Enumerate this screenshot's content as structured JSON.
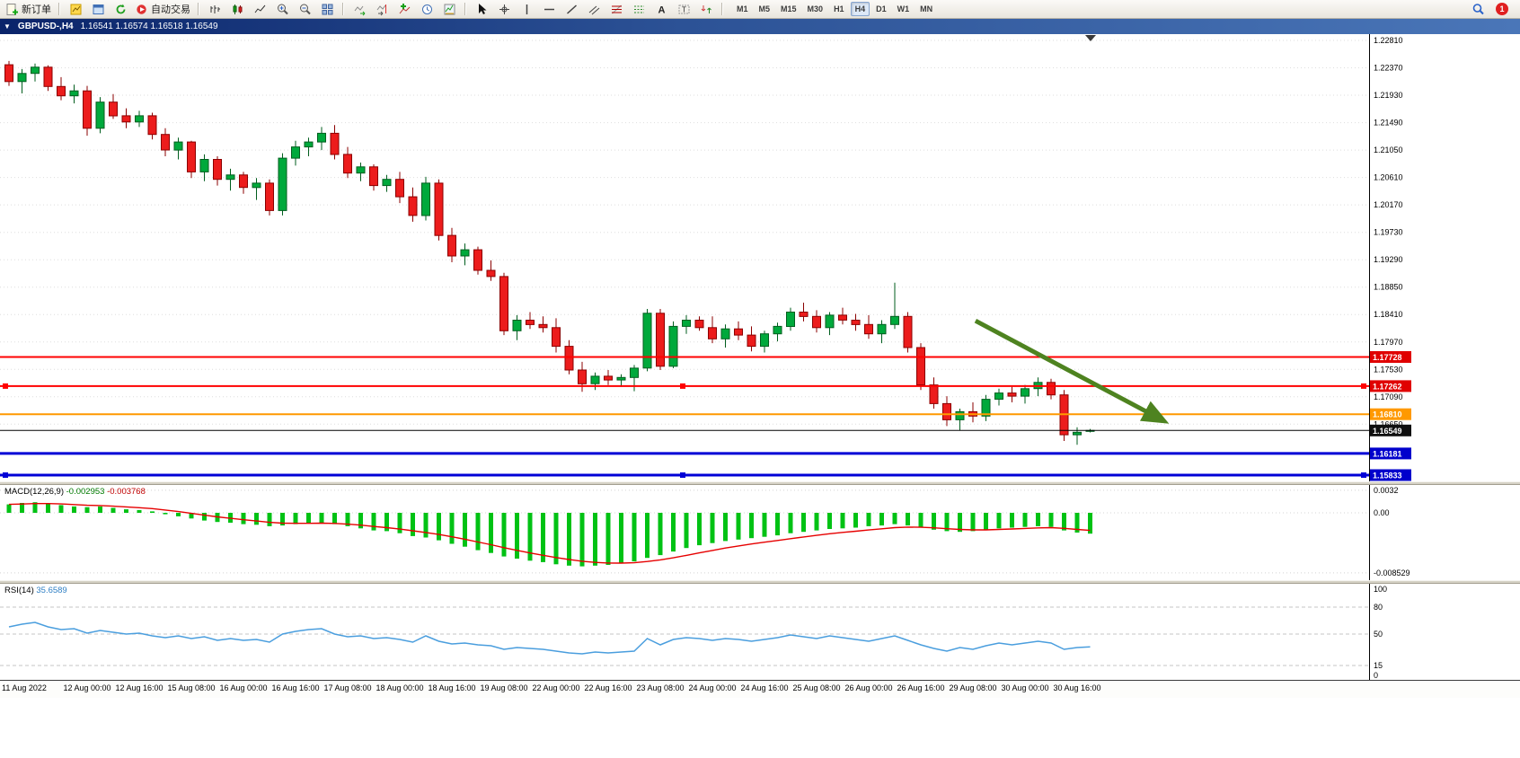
{
  "app": {
    "toolbar": {
      "new_order": "新订单",
      "auto_trading": "自动交易",
      "timeframes": [
        "M1",
        "M5",
        "M15",
        "M30",
        "H1",
        "H4",
        "D1",
        "W1",
        "MN"
      ],
      "active_timeframe": "H4",
      "notification_count": "1"
    },
    "icons": {
      "new-order-icon": "document-plus",
      "new-chart-icon": "yellow-chart-page",
      "profiles-icon": "blue-window",
      "refresh-icon": "green-circular-arrow",
      "auto-trading-icon": "red-play-circle",
      "bar-chart-icon": "ohlc-bars",
      "candlestick-chart-icon": "candles",
      "line-chart-icon": "zigzag-line",
      "zoom-in-icon": "magnifier-plus",
      "zoom-out-icon": "magnifier-minus",
      "tile-windows-icon": "window-grid",
      "auto-scroll-icon": "chart-green-arrow",
      "chart-shift-icon": "chart-red-marker",
      "indicators-icon": "chart-green-plus",
      "periods-icon": "clock",
      "templates-icon": "chart-template",
      "cursor-icon": "pointer-arrow",
      "crosshair-icon": "crosshair",
      "vertical-line-icon": "vertical-line",
      "horizontal-line-icon": "horizontal-line",
      "trendline-icon": "diagonal-line",
      "channel-icon": "parallel-lines",
      "fibonacci-icon": "fibo-retracement",
      "levels-icon": "stacked-lines",
      "text-icon": "letter-A",
      "text-label-icon": "boxed-T",
      "arrows-icon": "up-down-arrows",
      "search-icon": "magnifier",
      "chart-menu-icon": "triangle-down",
      "chart-shift-marker": "small-down-triangle"
    }
  },
  "titlebar": {
    "dropdown_glyph": "▼",
    "symbol": "GBPUSD-,H4",
    "ohlc": "1.16541 1.16574 1.16518 1.16549"
  },
  "colors": {
    "up": "#00A93C",
    "up_border": "#005E1E",
    "down": "#EC1C1C",
    "down_border": "#8B0000",
    "macd_hist": "#00C214",
    "macd_signal": "#E60000",
    "rsi_line": "#4A9EDE",
    "arrow": "#4E8320",
    "grid": "#DEDEDE",
    "hline_red": "#FF0000",
    "hline_orange": "#FF9900",
    "hline_blue": "#0000D6"
  },
  "chart_data": [
    {
      "type": "candlestick",
      "symbol": "GBPUSD-",
      "timeframe": "H4",
      "ylim": [
        1.156,
        1.2295
      ],
      "y_ticks": [
        1.2281,
        1.2237,
        1.2193,
        1.2149,
        1.2105,
        1.2061,
        1.2017,
        1.1973,
        1.1929,
        1.1885,
        1.1841,
        1.1797,
        1.1753,
        1.1709,
        1.1665
      ],
      "current_price": 1.16549,
      "x_labels": [
        [
          0,
          "11 Aug 2022"
        ],
        [
          6,
          "12 Aug 00:00"
        ],
        [
          10,
          "12 Aug 16:00"
        ],
        [
          14,
          "15 Aug 08:00"
        ],
        [
          18,
          "16 Aug 00:00"
        ],
        [
          22,
          "16 Aug 16:00"
        ],
        [
          26,
          "17 Aug 08:00"
        ],
        [
          30,
          "18 Aug 00:00"
        ],
        [
          34,
          "18 Aug 16:00"
        ],
        [
          38,
          "19 Aug 08:00"
        ],
        [
          42,
          "22 Aug 00:00"
        ],
        [
          46,
          "22 Aug 16:00"
        ],
        [
          50,
          "23 Aug 08:00"
        ],
        [
          54,
          "24 Aug 00:00"
        ],
        [
          58,
          "24 Aug 16:00"
        ],
        [
          62,
          "25 Aug 08:00"
        ],
        [
          66,
          "26 Aug 00:00"
        ],
        [
          70,
          "26 Aug 16:00"
        ],
        [
          74,
          "29 Aug 08:00"
        ],
        [
          78,
          "30 Aug 00:00"
        ],
        [
          82,
          "30 Aug 16:00"
        ]
      ],
      "hlines": [
        {
          "price": 1.17728,
          "label": "1.17728",
          "color": "#FF0000",
          "tag_bg": "#E00000",
          "width": 2,
          "selected": false
        },
        {
          "price": 1.17262,
          "label": "1.17262",
          "color": "#FF0000",
          "tag_bg": "#E00000",
          "width": 2,
          "selected": true
        },
        {
          "price": 1.1681,
          "label": "1.16810",
          "color": "#FF9900",
          "tag_bg": "#FF9900",
          "width": 2,
          "selected": false
        },
        {
          "price": 1.16181,
          "label": "1.16181",
          "color": "#0000D6",
          "tag_bg": "#0000CC",
          "width": 3,
          "selected": false
        },
        {
          "price": 1.15833,
          "label": "1.15833",
          "color": "#0000D6",
          "tag_bg": "#0000CC",
          "width": 3,
          "selected": true
        }
      ],
      "trend_arrow": {
        "from_index": 74.2,
        "from_price": 1.1831,
        "to_index": 88.6,
        "to_price": 1.1671
      },
      "ohlc": [
        [
          1.2242,
          1.2248,
          1.2208,
          1.2215
        ],
        [
          1.2215,
          1.2235,
          1.2196,
          1.2228
        ],
        [
          1.2228,
          1.2244,
          1.2215,
          1.2238
        ],
        [
          1.2238,
          1.2241,
          1.22,
          1.2207
        ],
        [
          1.2207,
          1.2222,
          1.2185,
          1.2192
        ],
        [
          1.2192,
          1.221,
          1.218,
          1.22
        ],
        [
          1.22,
          1.2208,
          1.2128,
          1.214
        ],
        [
          1.214,
          1.219,
          1.2132,
          1.2182
        ],
        [
          1.2182,
          1.2195,
          1.2155,
          1.216
        ],
        [
          1.216,
          1.2172,
          1.214,
          1.215
        ],
        [
          1.215,
          1.2168,
          1.2142,
          1.216
        ],
        [
          1.216,
          1.2165,
          1.2122,
          1.213
        ],
        [
          1.213,
          1.214,
          1.2095,
          1.2105
        ],
        [
          1.2105,
          1.2125,
          1.209,
          1.2118
        ],
        [
          1.2118,
          1.212,
          1.206,
          1.207
        ],
        [
          1.207,
          1.2098,
          1.2055,
          1.209
        ],
        [
          1.209,
          1.2095,
          1.2048,
          1.2058
        ],
        [
          1.2058,
          1.2075,
          1.204,
          1.2065
        ],
        [
          1.2065,
          1.207,
          1.2035,
          1.2045
        ],
        [
          1.2045,
          1.206,
          1.2025,
          1.2052
        ],
        [
          1.2052,
          1.2058,
          1.2,
          1.2008
        ],
        [
          1.2008,
          1.21,
          1.2,
          1.2092
        ],
        [
          1.2092,
          1.212,
          1.208,
          1.211
        ],
        [
          1.211,
          1.2125,
          1.2095,
          1.2118
        ],
        [
          1.2118,
          1.2142,
          1.2105,
          1.2132
        ],
        [
          1.2132,
          1.2145,
          1.209,
          1.2098
        ],
        [
          1.2098,
          1.211,
          1.206,
          1.2068
        ],
        [
          1.2068,
          1.2085,
          1.2055,
          1.2078
        ],
        [
          1.2078,
          1.2082,
          1.204,
          1.2048
        ],
        [
          1.2048,
          1.2065,
          1.2038,
          1.2058
        ],
        [
          1.2058,
          1.207,
          1.202,
          1.203
        ],
        [
          1.203,
          1.2045,
          1.199,
          1.2
        ],
        [
          1.2,
          1.2062,
          1.1992,
          1.2052
        ],
        [
          1.2052,
          1.2058,
          1.196,
          1.1968
        ],
        [
          1.1968,
          1.198,
          1.1925,
          1.1935
        ],
        [
          1.1935,
          1.1955,
          1.192,
          1.1945
        ],
        [
          1.1945,
          1.195,
          1.1905,
          1.1912
        ],
        [
          1.1912,
          1.1928,
          1.1895,
          1.1902
        ],
        [
          1.1902,
          1.1908,
          1.1808,
          1.1815
        ],
        [
          1.1815,
          1.184,
          1.18,
          1.1832
        ],
        [
          1.1832,
          1.1845,
          1.1818,
          1.1825
        ],
        [
          1.1825,
          1.1838,
          1.1812,
          1.182
        ],
        [
          1.182,
          1.1835,
          1.178,
          1.179
        ],
        [
          1.179,
          1.18,
          1.1745,
          1.1752
        ],
        [
          1.1752,
          1.1765,
          1.1717,
          1.173
        ],
        [
          1.173,
          1.1748,
          1.172,
          1.1742
        ],
        [
          1.1742,
          1.1752,
          1.1728,
          1.1736
        ],
        [
          1.1736,
          1.1745,
          1.1725,
          1.174
        ],
        [
          1.174,
          1.176,
          1.1718,
          1.1755
        ],
        [
          1.1755,
          1.185,
          1.175,
          1.1843
        ],
        [
          1.1843,
          1.185,
          1.1752,
          1.1758
        ],
        [
          1.1758,
          1.183,
          1.1755,
          1.1822
        ],
        [
          1.1822,
          1.184,
          1.181,
          1.1832
        ],
        [
          1.1832,
          1.1838,
          1.1815,
          1.182
        ],
        [
          1.182,
          1.1838,
          1.1795,
          1.1802
        ],
        [
          1.1802,
          1.1825,
          1.1788,
          1.1818
        ],
        [
          1.1818,
          1.183,
          1.18,
          1.1808
        ],
        [
          1.1808,
          1.1822,
          1.1782,
          1.179
        ],
        [
          1.179,
          1.1815,
          1.178,
          1.181
        ],
        [
          1.181,
          1.1828,
          1.1798,
          1.1822
        ],
        [
          1.1822,
          1.1852,
          1.1815,
          1.1845
        ],
        [
          1.1845,
          1.186,
          1.183,
          1.1838
        ],
        [
          1.1838,
          1.1848,
          1.1812,
          1.182
        ],
        [
          1.182,
          1.1845,
          1.1808,
          1.184
        ],
        [
          1.184,
          1.1852,
          1.1825,
          1.1832
        ],
        [
          1.1832,
          1.1842,
          1.1815,
          1.1825
        ],
        [
          1.1825,
          1.184,
          1.1802,
          1.181
        ],
        [
          1.181,
          1.1832,
          1.1795,
          1.1825
        ],
        [
          1.1825,
          1.1892,
          1.1818,
          1.1838
        ],
        [
          1.1838,
          1.1845,
          1.178,
          1.1788
        ],
        [
          1.1788,
          1.1795,
          1.172,
          1.1728
        ],
        [
          1.1728,
          1.174,
          1.169,
          1.1698
        ],
        [
          1.1698,
          1.171,
          1.1662,
          1.1672
        ],
        [
          1.1672,
          1.169,
          1.1655,
          1.1685
        ],
        [
          1.1685,
          1.17,
          1.1668,
          1.1678
        ],
        [
          1.1678,
          1.1712,
          1.167,
          1.1705
        ],
        [
          1.1705,
          1.1722,
          1.1695,
          1.1715
        ],
        [
          1.1715,
          1.1725,
          1.17,
          1.171
        ],
        [
          1.171,
          1.1728,
          1.1698,
          1.1722
        ],
        [
          1.1722,
          1.174,
          1.171,
          1.1732
        ],
        [
          1.1732,
          1.1738,
          1.1705,
          1.1712
        ],
        [
          1.1712,
          1.172,
          1.1638,
          1.1648
        ],
        [
          1.1648,
          1.166,
          1.1632,
          1.1652
        ],
        [
          1.16541,
          1.16574,
          1.16518,
          1.16549
        ]
      ]
    },
    {
      "type": "bar",
      "name": "MACD(12,26,9)",
      "value_main": "-0.002953",
      "value_signal": "-0.003768",
      "ylim": [
        -0.008529,
        0.0032
      ],
      "y_ticks": [
        {
          "v": 0.0032,
          "t": "0.0032"
        },
        {
          "v": 0,
          "t": "0.00"
        },
        {
          "v": -0.008529,
          "t": "-0.008529"
        }
      ],
      "values": [
        0.0012,
        0.0014,
        0.0015,
        0.0013,
        0.0011,
        0.0009,
        0.0008,
        0.0009,
        0.0007,
        0.0005,
        0.0004,
        0.0002,
        -0.0002,
        -0.0005,
        -0.0008,
        -0.0011,
        -0.0013,
        -0.0014,
        -0.0016,
        -0.0017,
        -0.0019,
        -0.0018,
        -0.0016,
        -0.0015,
        -0.0014,
        -0.0016,
        -0.0019,
        -0.0022,
        -0.0025,
        -0.0026,
        -0.0029,
        -0.0033,
        -0.0035,
        -0.0039,
        -0.0044,
        -0.0048,
        -0.0053,
        -0.0057,
        -0.0062,
        -0.0065,
        -0.0068,
        -0.007,
        -0.0073,
        -0.0075,
        -0.0076,
        -0.0075,
        -0.0074,
        -0.0072,
        -0.0069,
        -0.0064,
        -0.006,
        -0.0055,
        -0.005,
        -0.0046,
        -0.0043,
        -0.004,
        -0.0038,
        -0.0036,
        -0.0034,
        -0.0032,
        -0.0029,
        -0.0027,
        -0.0025,
        -0.0023,
        -0.0022,
        -0.0021,
        -0.0019,
        -0.0018,
        -0.0016,
        -0.0018,
        -0.0021,
        -0.0024,
        -0.0026,
        -0.0027,
        -0.0026,
        -0.0024,
        -0.0022,
        -0.0021,
        -0.002,
        -0.0019,
        -0.002,
        -0.0025,
        -0.0028,
        -0.002953
      ]
    },
    {
      "type": "line",
      "name": "RSI(14)",
      "value": "35.6589",
      "ylim": [
        0,
        100
      ],
      "levels": [
        80,
        50,
        15
      ],
      "y_ticks": [
        {
          "v": 100,
          "t": "100"
        },
        {
          "v": 80,
          "t": "80"
        },
        {
          "v": 50,
          "t": "50"
        },
        {
          "v": 15,
          "t": "15"
        },
        {
          "v": 0,
          "t": "0"
        }
      ],
      "values": [
        58,
        61,
        63,
        58,
        55,
        56,
        51,
        54,
        52,
        50,
        51,
        48,
        46,
        48,
        45,
        47,
        43,
        45,
        43,
        44,
        41,
        50,
        53,
        55,
        56,
        50,
        47,
        48,
        45,
        46,
        44,
        41,
        48,
        42,
        39,
        40,
        38,
        37,
        33,
        35,
        34,
        33,
        31,
        29,
        28,
        30,
        29,
        30,
        31,
        45,
        38,
        44,
        46,
        45,
        43,
        45,
        44,
        42,
        44,
        46,
        49,
        47,
        45,
        48,
        46,
        44,
        42,
        45,
        48,
        43,
        38,
        34,
        31,
        35,
        33,
        37,
        40,
        38,
        40,
        42,
        40,
        33,
        35,
        35.66
      ]
    }
  ]
}
